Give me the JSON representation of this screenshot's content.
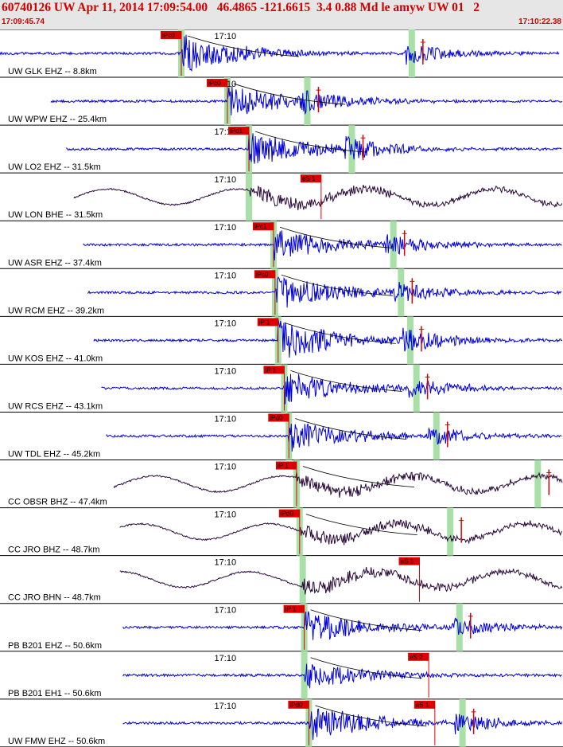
{
  "header": {
    "title": "60740126 UW Apr 11, 2014 17:09:54.00   46.4865 -121.6615  3.4 0.88 Md le amyw UW 01   2",
    "start_time": "17:09:45.74",
    "end_time": "17:10:22.38"
  },
  "colors": {
    "short_period": "#0000dd",
    "broadband": "#2a0a3a",
    "pick": "#dd0000",
    "window": "#a8e0a8",
    "border": "#000000"
  },
  "chart_data": {
    "type": "line",
    "time_window": [
      "17:09:45.74",
      "17:10:22.38"
    ],
    "minute_label": "17:10",
    "traces": [
      {
        "label": "UW GLK EHZ -- 8.8km",
        "kind": "sp",
        "start": 0.0,
        "end": 36.4,
        "p_pick": "iPc0",
        "p": 11.8,
        "s_mark": 26.8,
        "amp": 1.0
      },
      {
        "label": "UW WPW EHZ -- 25.4km",
        "kind": "sp",
        "start": 3.3,
        "end": 38.8,
        "p_pick": "iPc0",
        "p": 14.8,
        "s_mark": 20.0,
        "amp": 0.8
      },
      {
        "label": "UW LO2 EHZ -- 31.5km",
        "kind": "sp",
        "start": 4.3,
        "end": 40.2,
        "p_pick": "iPd1",
        "p": 16.2,
        "s_mark": 22.9,
        "amp": 0.9
      },
      {
        "label": "UW LON BHE -- 31.5km",
        "kind": "bb",
        "start": 4.8,
        "end": 40.2,
        "p_pick": "",
        "s_pick": "eS 1",
        "p": 16.2,
        "s": 20.9,
        "amp": 1.0
      },
      {
        "label": "UW ASR EHZ -- 37.4km",
        "kind": "sp",
        "start": 5.4,
        "end": 41.3,
        "p_pick": "iPc1",
        "p": 17.8,
        "s_mark": 25.6,
        "amp": 0.8
      },
      {
        "label": "UW RCM EHZ -- 39.2km",
        "kind": "sp",
        "start": 5.7,
        "end": 41.5,
        "p_pick": "iPc0",
        "p": 17.9,
        "s_mark": 26.1,
        "amp": 0.9
      },
      {
        "label": "UW KOS EHZ -- 41.0km",
        "kind": "sp",
        "start": 6.1,
        "end": 42.2,
        "p_pick": "iP 1",
        "p": 18.1,
        "s_mark": 26.7,
        "amp": 1.0
      },
      {
        "label": "UW RCS EHZ -- 43.1km",
        "kind": "sp",
        "start": 6.6,
        "end": 42.3,
        "p_pick": "iP 1",
        "p": 18.5,
        "s_mark": 27.1,
        "amp": 0.8
      },
      {
        "label": "UW TDL EHZ -- 45.2km",
        "kind": "sp",
        "start": 6.9,
        "end": 42.3,
        "p_pick": "iPd0",
        "p": 18.8,
        "s_mark": 28.4,
        "amp": 0.8
      },
      {
        "label": "CC OBSR BHZ -- 47.4km",
        "kind": "bb",
        "start": 7.4,
        "end": 43.5,
        "p_pick": "iP 1",
        "p": 19.3,
        "s_mark": 35.0,
        "amp": 1.0
      },
      {
        "label": "CC JRO BHZ -- 48.7km",
        "kind": "bb",
        "start": 7.8,
        "end": 43.7,
        "p_pick": "iPd0",
        "p": 19.5,
        "s_mark": 29.3,
        "amp": 1.0
      },
      {
        "label": "CC JRO BHN -- 48.7km",
        "kind": "bb",
        "start": 7.8,
        "end": 43.7,
        "p_pick": "",
        "s_pick": "eS 1",
        "p": 19.7,
        "s": 27.3,
        "amp": 1.0
      },
      {
        "label": "PB B201 EHZ -- 50.6km",
        "kind": "sp",
        "start": 8.0,
        "end": 43.7,
        "p_pick": "iP 1",
        "p": 19.8,
        "s_mark": 29.9,
        "amp": 0.8
      },
      {
        "label": "PB B201 EH1 -- 50.6km",
        "kind": "sp",
        "start": 8.0,
        "end": 43.7,
        "p_pick": "",
        "s_pick": "eS 2",
        "p": 19.8,
        "s": 27.9,
        "amp": 0.7
      },
      {
        "label": "UW FMW EHZ -- 50.6km",
        "kind": "sp",
        "start": 8.0,
        "end": 43.7,
        "p_pick": "iPd0",
        "p": 20.1,
        "s_mark": 30.1,
        "s_pick": "eS 1",
        "s": 28.3,
        "amp": 0.9
      }
    ]
  }
}
